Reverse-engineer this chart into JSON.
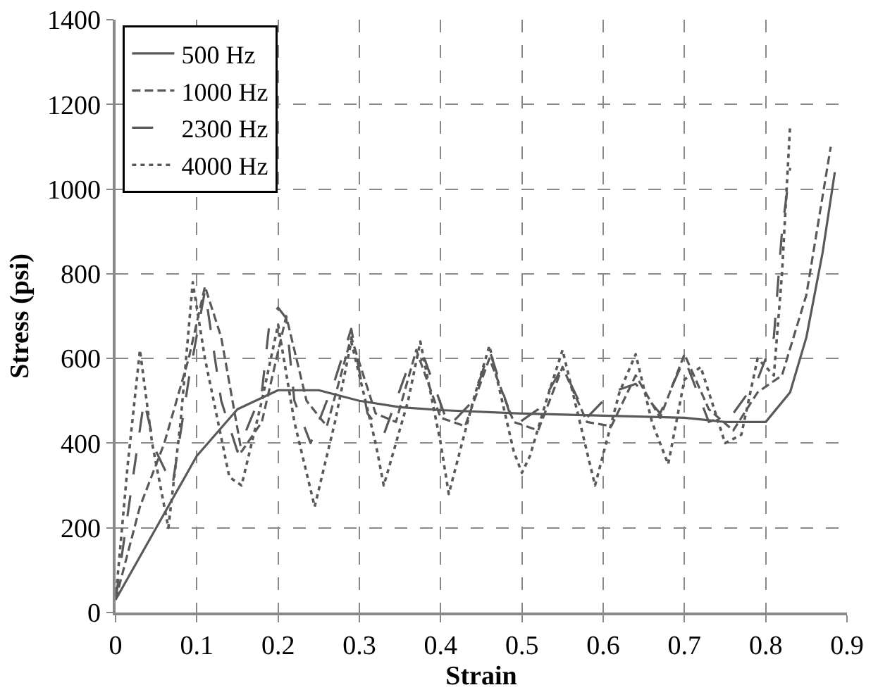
{
  "chart_data": {
    "type": "line",
    "xlabel": "Strain",
    "ylabel": "Stress (psi)",
    "xlim": [
      0,
      0.9
    ],
    "xticks": [
      0,
      0.1,
      0.2,
      0.3,
      0.4,
      0.5,
      0.6,
      0.7,
      0.8,
      0.9
    ],
    "ylim": [
      0,
      1400
    ],
    "yticks": [
      0,
      200,
      400,
      600,
      800,
      1000,
      1200,
      1400
    ],
    "grid": true,
    "legend": "top left",
    "marker": "none",
    "series": [
      {
        "name": "500 Hz",
        "color": "#595959",
        "line_style": "solid",
        "x": [
          0,
          0.05,
          0.1,
          0.15,
          0.2,
          0.25,
          0.3,
          0.35,
          0.4,
          0.5,
          0.6,
          0.7,
          0.75,
          0.8,
          0.83,
          0.85,
          0.87,
          0.885
        ],
        "values": [
          30,
          200,
          370,
          480,
          525,
          525,
          500,
          485,
          478,
          470,
          465,
          460,
          450,
          450,
          520,
          650,
          850,
          1040
        ]
      },
      {
        "name": "1000 Hz",
        "color": "#595959",
        "line_style": "dashed",
        "x": [
          0,
          0.03,
          0.06,
          0.09,
          0.11,
          0.13,
          0.155,
          0.18,
          0.21,
          0.235,
          0.26,
          0.29,
          0.32,
          0.345,
          0.37,
          0.4,
          0.43,
          0.46,
          0.49,
          0.52,
          0.55,
          0.58,
          0.61,
          0.64,
          0.67,
          0.7,
          0.73,
          0.76,
          0.79,
          0.82,
          0.85,
          0.88
        ],
        "values": [
          30,
          250,
          400,
          600,
          770,
          650,
          380,
          450,
          700,
          500,
          440,
          650,
          470,
          450,
          620,
          460,
          440,
          600,
          450,
          430,
          580,
          450,
          440,
          560,
          460,
          610,
          480,
          430,
          520,
          560,
          750,
          1100
        ]
      },
      {
        "name": "2300 Hz",
        "color": "#595959",
        "line_style": "longdash",
        "x": [
          0,
          0.02,
          0.035,
          0.05,
          0.07,
          0.09,
          0.11,
          0.13,
          0.15,
          0.18,
          0.19,
          0.2,
          0.21,
          0.22,
          0.24,
          0.27,
          0.29,
          0.31,
          0.33,
          0.36,
          0.38,
          0.41,
          0.44,
          0.46,
          0.49,
          0.52,
          0.55,
          0.58,
          0.61,
          0.64,
          0.67,
          0.7,
          0.73,
          0.76,
          0.79,
          0.81,
          0.82,
          0.83
        ],
        "values": [
          30,
          300,
          500,
          380,
          300,
          550,
          760,
          500,
          380,
          520,
          695,
          720,
          695,
          500,
          400,
          550,
          670,
          470,
          420,
          580,
          600,
          440,
          500,
          620,
          440,
          480,
          580,
          460,
          520,
          540,
          470,
          600,
          450,
          470,
          550,
          650,
          900,
          1050
        ]
      },
      {
        "name": "4000 Hz",
        "color": "#595959",
        "line_style": "dotted",
        "x": [
          0,
          0.015,
          0.03,
          0.045,
          0.065,
          0.08,
          0.095,
          0.11,
          0.14,
          0.155,
          0.18,
          0.2,
          0.22,
          0.245,
          0.27,
          0.29,
          0.32,
          0.33,
          0.36,
          0.375,
          0.4,
          0.41,
          0.44,
          0.46,
          0.49,
          0.5,
          0.51,
          0.53,
          0.55,
          0.58,
          0.59,
          0.62,
          0.64,
          0.66,
          0.68,
          0.7,
          0.72,
          0.75,
          0.77,
          0.79,
          0.81,
          0.82,
          0.83
        ],
        "values": [
          30,
          350,
          620,
          400,
          200,
          450,
          780,
          600,
          320,
          300,
          500,
          680,
          450,
          250,
          450,
          640,
          400,
          300,
          500,
          640,
          400,
          280,
          500,
          630,
          380,
          330,
          370,
          500,
          620,
          380,
          300,
          520,
          610,
          450,
          350,
          550,
          580,
          400,
          420,
          600,
          560,
          800,
          1150
        ]
      }
    ]
  }
}
